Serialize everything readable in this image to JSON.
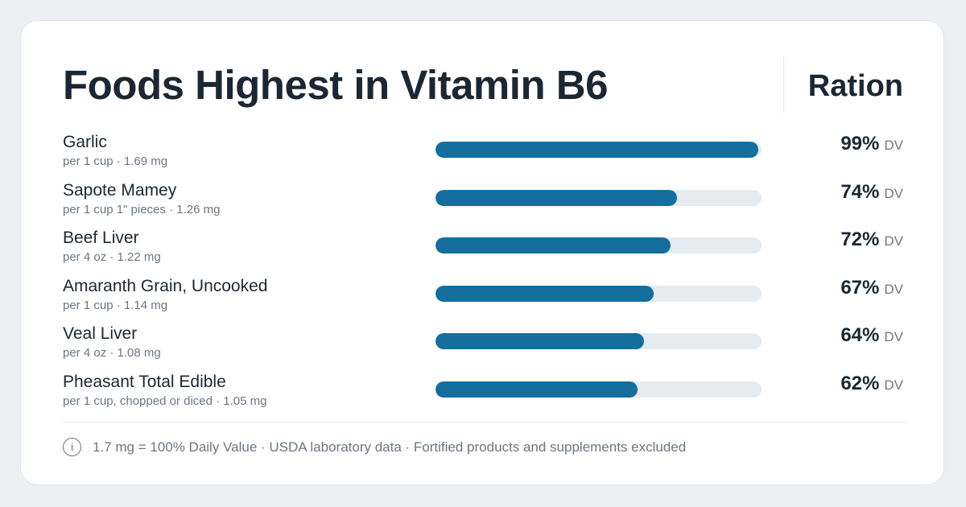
{
  "header": {
    "title": "Foods Highest in Vitamin B6",
    "brand": "Ration"
  },
  "chart_data": {
    "type": "bar",
    "orientation": "horizontal",
    "title": "Foods Highest in Vitamin B6",
    "unit": "% DV",
    "xlim": [
      0,
      100
    ],
    "categories": [
      "Garlic",
      "Sapote Mamey",
      "Beef Liver",
      "Amaranth Grain, Uncooked",
      "Veal Liver",
      "Pheasant Total Edible"
    ],
    "values": [
      99,
      74,
      72,
      67,
      64,
      62
    ],
    "rows": [
      {
        "name": "Garlic",
        "serving": "per 1 cup · 1.69 mg",
        "pct": "99%",
        "dv": "DV",
        "value": 99
      },
      {
        "name": "Sapote Mamey",
        "serving": "per 1 cup 1\" pieces · 1.26 mg",
        "pct": "74%",
        "dv": "DV",
        "value": 74
      },
      {
        "name": "Beef Liver",
        "serving": "per 4 oz · 1.22 mg",
        "pct": "72%",
        "dv": "DV",
        "value": 72
      },
      {
        "name": "Amaranth Grain, Uncooked",
        "serving": "per 1 cup · 1.14 mg",
        "pct": "67%",
        "dv": "DV",
        "value": 67
      },
      {
        "name": "Veal Liver",
        "serving": "per 4 oz · 1.08 mg",
        "pct": "64%",
        "dv": "DV",
        "value": 64
      },
      {
        "name": "Pheasant Total Edible",
        "serving": "per 1 cup, chopped or diced · 1.05 mg",
        "pct": "62%",
        "dv": "DV",
        "value": 62
      }
    ]
  },
  "footer": {
    "info_glyph": "i",
    "note": "1.7 mg = 100% Daily Value · USDA laboratory data · Fortified products and supplements excluded"
  },
  "colors": {
    "bar_fill": "#146e9e",
    "bar_track": "#e6ebef",
    "text": "#1b2733",
    "muted": "#6b7682",
    "background": "#edf0f3"
  }
}
